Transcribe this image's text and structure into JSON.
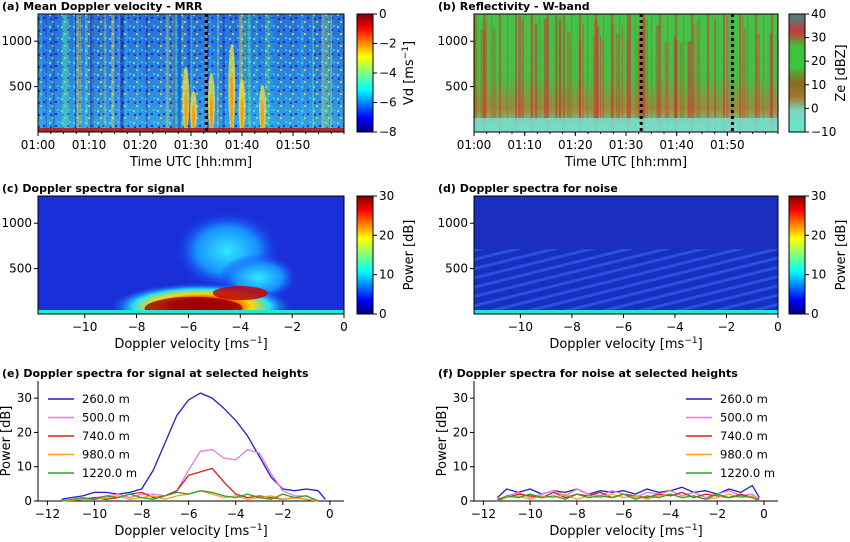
{
  "chart_data": [
    {
      "panel": "a",
      "type": "heatmap",
      "title": "(a) Mean Doppler velocity - MRR",
      "xlabel": "Time UTC [hh:mm]",
      "ylabel": "",
      "x_ticks": [
        "01:00",
        "01:10",
        "01:20",
        "01:30",
        "01:40",
        "01:50"
      ],
      "xlim_minutes": [
        0,
        60
      ],
      "y_ticks": [
        500,
        1000
      ],
      "ylim": [
        0,
        1300
      ],
      "colorbar": {
        "label_html": "Vd [ms<tspan baseline-shift='super' font-size='9'>-1</tspan>]",
        "label": "Vd [ms-1]",
        "ticks": [
          0,
          -2,
          -4,
          -6,
          -8
        ],
        "range": [
          -8,
          0
        ],
        "colormap": "jet"
      },
      "dotted_lines_minutes": [
        33
      ]
    },
    {
      "panel": "b",
      "type": "heatmap",
      "title": "(b) Reflectivity - W-band",
      "xlabel": "Time UTC [hh:mm]",
      "ylabel": "",
      "x_ticks": [
        "01:00",
        "01:10",
        "01:20",
        "01:30",
        "01:40",
        "01:50"
      ],
      "xlim_minutes": [
        0,
        60
      ],
      "y_ticks": [
        500,
        1000
      ],
      "ylim": [
        0,
        1300
      ],
      "colorbar": {
        "label": "Ze [dBZ]",
        "ticks": [
          40,
          30,
          20,
          10,
          0,
          -10
        ],
        "range": [
          -10,
          40
        ],
        "colormap": "terrain"
      },
      "dotted_lines_minutes": [
        33,
        51
      ]
    },
    {
      "panel": "c",
      "type": "heatmap",
      "title": "(c) Doppler spectra for signal",
      "xlabel": "Doppler velocity [ms-1]",
      "ylabel": "",
      "x_ticks": [
        -10,
        -8,
        -6,
        -4,
        -2,
        0
      ],
      "xlim": [
        -11.8,
        0
      ],
      "y_ticks": [
        500,
        1000
      ],
      "ylim": [
        0,
        1300
      ],
      "colorbar": {
        "label": "Power [dB]",
        "ticks": [
          30,
          20,
          10,
          0
        ],
        "range": [
          0,
          30
        ],
        "colormap": "jet"
      }
    },
    {
      "panel": "d",
      "type": "heatmap",
      "title": "(d) Doppler spectra for noise",
      "xlabel": "Doppler velocity [ms-1]",
      "ylabel": "",
      "x_ticks": [
        -10,
        -8,
        -6,
        -4,
        -2,
        0
      ],
      "xlim": [
        -11.8,
        0
      ],
      "y_ticks": [
        500,
        1000
      ],
      "ylim": [
        0,
        1300
      ],
      "colorbar": {
        "label": "Power [dB]",
        "ticks": [
          30,
          20,
          10,
          0
        ],
        "range": [
          0,
          30
        ],
        "colormap": "jet"
      }
    },
    {
      "panel": "e",
      "type": "line",
      "title": "(e) Doppler spectra for signal at selected heights",
      "xlabel": "Doppler velocity [ms-1]",
      "ylabel": "Power [dB]",
      "x_ticks": [
        -12,
        -10,
        -8,
        -6,
        -4,
        -2,
        0
      ],
      "xlim": [
        -12.4,
        0.6
      ],
      "y_ticks": [
        0,
        10,
        20,
        30
      ],
      "ylim": [
        0,
        35
      ],
      "legend_position": "top-left",
      "series": [
        {
          "name": "260.0 m",
          "color": "#1f1fc8",
          "x": [
            -11.4,
            -11,
            -10.5,
            -10,
            -9.5,
            -9,
            -8.5,
            -8,
            -7.5,
            -7,
            -6.5,
            -6,
            -5.5,
            -5,
            -4.5,
            -4,
            -3.5,
            -3,
            -2.5,
            -2,
            -1.5,
            -1,
            -0.5,
            -0.2
          ],
          "y": [
            0.5,
            1,
            1.5,
            2.5,
            2.5,
            2,
            2.5,
            3.5,
            9,
            17,
            25,
            29.5,
            31.5,
            30,
            27,
            23.5,
            19,
            13,
            7,
            3.5,
            3,
            3.5,
            3,
            0.5
          ]
        },
        {
          "name": "500.0 m",
          "color": "#e377e3",
          "x": [
            -11.4,
            -10.5,
            -10,
            -9.5,
            -9,
            -8.5,
            -8,
            -7.5,
            -7,
            -6.5,
            -6,
            -5.5,
            -5,
            -4.5,
            -4,
            -3.5,
            -3,
            -2.5,
            -2,
            -1.5,
            -1,
            -0.5
          ],
          "y": [
            0,
            0.5,
            1,
            1.5,
            2,
            1,
            2,
            2,
            1.5,
            3,
            9,
            14.5,
            15,
            12.5,
            12,
            15,
            14,
            8,
            3,
            1.5,
            1.5,
            0
          ]
        },
        {
          "name": "740.0 m",
          "color": "#d62020",
          "x": [
            -11.4,
            -10.5,
            -10,
            -9.5,
            -9,
            -8.5,
            -8,
            -7.5,
            -7,
            -6.5,
            -6,
            -5.5,
            -5,
            -4.5,
            -4,
            -3.5,
            -3,
            -2.5,
            -2,
            -1.5,
            -1,
            -0.5
          ],
          "y": [
            0,
            0.5,
            1,
            0.5,
            1,
            2,
            2.5,
            1,
            1.5,
            3,
            7.5,
            8.5,
            9.5,
            5.5,
            2,
            1,
            1.5,
            1,
            0.5,
            1,
            0.5,
            0
          ]
        },
        {
          "name": "980.0 m",
          "color": "#ff9f1c",
          "x": [
            -11.4,
            -10.5,
            -10,
            -9.5,
            -9,
            -8.5,
            -8,
            -7.5,
            -7,
            -6.5,
            -6,
            -5.5,
            -5,
            -4.5,
            -4,
            -3.5,
            -3,
            -2.5,
            -2,
            -1.5,
            -1,
            -0.5
          ],
          "y": [
            0,
            0.5,
            0.5,
            1,
            1.5,
            0.5,
            1,
            1.5,
            0.5,
            1.5,
            2,
            3,
            2,
            1,
            1.5,
            0.5,
            1,
            1.5,
            0.5,
            1,
            0.5,
            0
          ]
        },
        {
          "name": "1220.0 m",
          "color": "#2ca02c",
          "x": [
            -11.4,
            -10.5,
            -10,
            -9.5,
            -9,
            -8.5,
            -8,
            -7.5,
            -7,
            -6.5,
            -6,
            -5.5,
            -5,
            -4.5,
            -4,
            -3.5,
            -3,
            -2.5,
            -2,
            -1.5,
            -1,
            -0.5
          ],
          "y": [
            0,
            1,
            0.5,
            1.5,
            1,
            2,
            1,
            0.5,
            1.5,
            2.5,
            2,
            3,
            2.5,
            1.5,
            1,
            2,
            1,
            0.5,
            2,
            1,
            1.5,
            0
          ]
        }
      ]
    },
    {
      "panel": "f",
      "type": "line",
      "title": "(f) Doppler spectra for noise at selected heights",
      "xlabel": "Doppler velocity [ms-1]",
      "ylabel": "Power [dB]",
      "x_ticks": [
        -12,
        -10,
        -8,
        -6,
        -4,
        -2,
        0
      ],
      "xlim": [
        -12.4,
        0.6
      ],
      "y_ticks": [
        0,
        10,
        20,
        30
      ],
      "ylim": [
        0,
        35
      ],
      "legend_position": "top-right",
      "series": [
        {
          "name": "260.0 m",
          "color": "#1f1fc8",
          "x": [
            -11.4,
            -11,
            -10.5,
            -10,
            -9.5,
            -9,
            -8.5,
            -8,
            -7.5,
            -7,
            -6.5,
            -6,
            -5.5,
            -5,
            -4.5,
            -4,
            -3.5,
            -3,
            -2.5,
            -2,
            -1.5,
            -1,
            -0.5,
            -0.2
          ],
          "y": [
            1,
            3.5,
            2.5,
            3.5,
            2,
            3,
            2.5,
            3.5,
            2,
            3,
            2.5,
            3,
            2,
            3.5,
            2.5,
            3,
            4,
            2.5,
            3,
            2,
            3.5,
            2.5,
            4.5,
            1
          ]
        },
        {
          "name": "500.0 m",
          "color": "#e377e3",
          "x": [
            -11.4,
            -11,
            -10.5,
            -10,
            -9.5,
            -9,
            -8.5,
            -8,
            -7.5,
            -7,
            -6.5,
            -6,
            -5.5,
            -5,
            -4.5,
            -4,
            -3.5,
            -3,
            -2.5,
            -2,
            -1.5,
            -1,
            -0.5,
            -0.2
          ],
          "y": [
            0.5,
            1.5,
            2.5,
            1,
            2,
            3,
            1.5,
            3.5,
            2,
            1.5,
            3,
            2,
            1,
            2.5,
            2,
            3,
            1.5,
            2.5,
            1,
            2,
            3,
            1.5,
            2,
            0.5
          ]
        },
        {
          "name": "740.0 m",
          "color": "#d62020",
          "x": [
            -11.4,
            -11,
            -10.5,
            -10,
            -9.5,
            -9,
            -8.5,
            -8,
            -7.5,
            -7,
            -6.5,
            -6,
            -5.5,
            -5,
            -4.5,
            -4,
            -3.5,
            -3,
            -2.5,
            -2,
            -1.5,
            -1,
            -0.5,
            -0.2
          ],
          "y": [
            0.5,
            1,
            2,
            1.5,
            1,
            2.5,
            1,
            2,
            1.5,
            2.5,
            1,
            2,
            1.5,
            1,
            2,
            1.5,
            2.5,
            1,
            2,
            1.5,
            1,
            2,
            1,
            0.5
          ]
        },
        {
          "name": "980.0 m",
          "color": "#ff9f1c",
          "x": [
            -11.4,
            -11,
            -10.5,
            -10,
            -9.5,
            -9,
            -8.5,
            -8,
            -7.5,
            -7,
            -6.5,
            -6,
            -5.5,
            -5,
            -4.5,
            -4,
            -3.5,
            -3,
            -2.5,
            -2,
            -1.5,
            -1,
            -0.5,
            -0.2
          ],
          "y": [
            0,
            1,
            1.5,
            0.5,
            1.5,
            1,
            2,
            0.5,
            1.5,
            1,
            2,
            1,
            1.5,
            0.5,
            1.5,
            2,
            1,
            1.5,
            0.5,
            1,
            2,
            1,
            1.5,
            0
          ]
        },
        {
          "name": "1220.0 m",
          "color": "#2ca02c",
          "x": [
            -11.4,
            -11,
            -10.5,
            -10,
            -9.5,
            -9,
            -8.5,
            -8,
            -7.5,
            -7,
            -6.5,
            -6,
            -5.5,
            -5,
            -4.5,
            -4,
            -3.5,
            -3,
            -2.5,
            -2,
            -1.5,
            -1,
            -0.5,
            -0.2
          ],
          "y": [
            0,
            1.5,
            1,
            2,
            1,
            1.5,
            0.5,
            2,
            1,
            1.5,
            1,
            2,
            0.5,
            1.5,
            1,
            2,
            1,
            1.5,
            0.5,
            2,
            1,
            1.5,
            1,
            0
          ]
        }
      ]
    }
  ]
}
